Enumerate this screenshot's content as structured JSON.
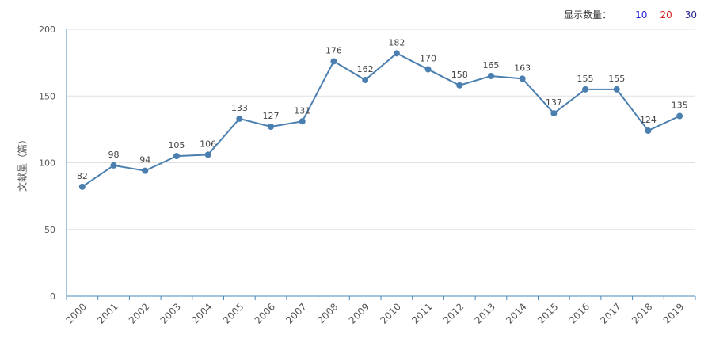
{
  "toolbar": {
    "label": "显示数量：",
    "options": [
      {
        "text": "10",
        "color": "#1f1fd6"
      },
      {
        "text": "20",
        "color": "#d61f1f"
      },
      {
        "text": "30",
        "color": "#1f1f8f"
      }
    ]
  },
  "chart_data": {
    "type": "line",
    "title": "",
    "xlabel": "",
    "ylabel": "文献量（篇）",
    "ylim": [
      0,
      200
    ],
    "yticks": [
      0,
      50,
      100,
      150,
      200
    ],
    "grid": true,
    "line_color": "#4a7fb0",
    "categories": [
      "2000",
      "2001",
      "2002",
      "2003",
      "2004",
      "2005",
      "2006",
      "2007",
      "2008",
      "2009",
      "2010",
      "2011",
      "2012",
      "2013",
      "2014",
      "2015",
      "2016",
      "2017",
      "2018",
      "2019"
    ],
    "series": [
      {
        "values": [
          82,
          98,
          94,
          105,
          106,
          133,
          127,
          131,
          176,
          162,
          182,
          170,
          158,
          165,
          163,
          137,
          155,
          155,
          124,
          135
        ]
      }
    ]
  }
}
